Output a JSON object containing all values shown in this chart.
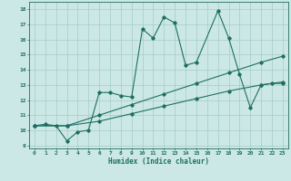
{
  "xlabel": "Humidex (Indice chaleur)",
  "background_color": "#cce8e6",
  "grid_color": "#aacfcd",
  "line_color": "#1e6e62",
  "xlim": [
    -0.5,
    23.5
  ],
  "ylim": [
    8.8,
    18.5
  ],
  "xticks": [
    0,
    1,
    2,
    3,
    4,
    5,
    6,
    7,
    8,
    9,
    10,
    11,
    12,
    13,
    14,
    15,
    16,
    17,
    18,
    19,
    20,
    21,
    22,
    23
  ],
  "yticks": [
    9,
    10,
    11,
    12,
    13,
    14,
    15,
    16,
    17,
    18
  ],
  "line1_x": [
    0,
    1,
    2,
    3,
    4,
    5,
    6,
    7,
    8,
    9,
    10,
    11,
    12,
    13,
    14,
    15,
    17,
    18,
    19,
    20,
    21,
    22,
    23
  ],
  "line1_y": [
    10.3,
    10.4,
    10.3,
    9.3,
    9.9,
    10.0,
    12.5,
    12.5,
    12.3,
    12.2,
    16.7,
    16.1,
    17.5,
    17.1,
    14.3,
    14.5,
    17.9,
    16.1,
    13.7,
    11.5,
    13.0,
    13.1,
    13.1
  ],
  "line2_x": [
    0,
    3,
    6,
    9,
    12,
    15,
    18,
    21,
    23
  ],
  "line2_y": [
    10.3,
    10.3,
    11.0,
    11.7,
    12.4,
    13.1,
    13.8,
    14.5,
    14.9
  ],
  "line3_x": [
    0,
    3,
    6,
    9,
    12,
    15,
    18,
    21,
    23
  ],
  "line3_y": [
    10.3,
    10.3,
    10.6,
    11.1,
    11.6,
    12.1,
    12.6,
    13.0,
    13.2
  ]
}
